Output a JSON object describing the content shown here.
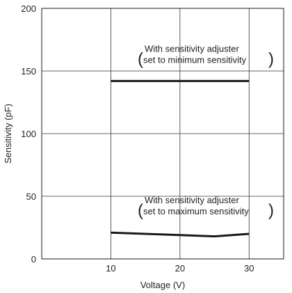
{
  "chart_data": {
    "type": "line",
    "title": "",
    "xlabel": "Voltage (V)",
    "ylabel": "Sensitivity (pF)",
    "xlim": [
      0,
      35
    ],
    "ylim": [
      0,
      200
    ],
    "x_ticks": [
      10,
      20,
      30
    ],
    "y_ticks": [
      0,
      50,
      100,
      150,
      200
    ],
    "grid": true,
    "series": [
      {
        "annotation_line1": "With sensitivity adjuster",
        "annotation_line2": "set to minimum sensitivity",
        "x": [
          10,
          20,
          30
        ],
        "y": [
          142,
          142,
          142
        ],
        "color": "#1a1a1a"
      },
      {
        "annotation_line1": "With sensitivity adjuster",
        "annotation_line2": "set to maximum sensitivity",
        "x": [
          10,
          20,
          25,
          30
        ],
        "y": [
          21,
          19,
          18,
          20
        ],
        "color": "#1a1a1a"
      }
    ]
  }
}
